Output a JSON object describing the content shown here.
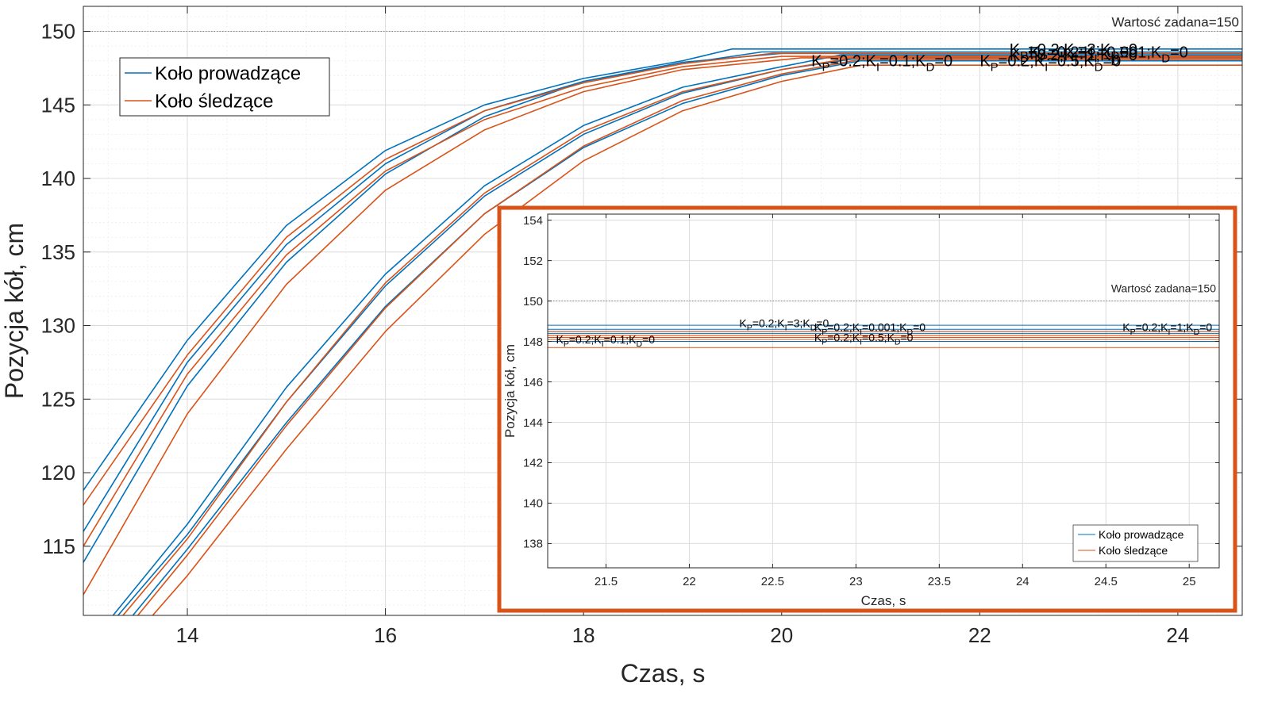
{
  "chart_data": [
    {
      "type": "line",
      "xlabel": "Czas, s",
      "ylabel": "Pozycja kół, cm",
      "xlim": [
        12.95,
        24.65
      ],
      "ylim": [
        110.3,
        151.7
      ],
      "xticks": [
        14,
        16,
        18,
        20,
        22,
        24
      ],
      "yticks": [
        115,
        120,
        125,
        130,
        135,
        140,
        145,
        150
      ],
      "grid": true,
      "minor_grid": true,
      "legend": {
        "position": "top-left",
        "entries": [
          {
            "label": "Koło prowadzące",
            "color": "#0072BD"
          },
          {
            "label": "Koło śledzące",
            "color": "#D95319"
          }
        ]
      },
      "reference_line": {
        "y": 150,
        "label": "Wartosć zadana=150"
      },
      "series": [
        {
          "group": "Koło prowadzące",
          "color": "#0072BD",
          "x": [
            12.95,
            14,
            15,
            16,
            17,
            18,
            19,
            19.5,
            24.65
          ],
          "y": [
            118.8,
            129.0,
            136.8,
            141.9,
            145.0,
            146.8,
            148.0,
            148.8,
            148.8
          ]
        },
        {
          "group": "Koło prowadzące",
          "color": "#0072BD",
          "x": [
            12.95,
            14,
            15,
            16,
            17,
            18,
            19,
            19.8,
            24.65
          ],
          "y": [
            116.0,
            127.5,
            135.5,
            141.0,
            144.6,
            146.6,
            147.8,
            148.6,
            148.6
          ]
        },
        {
          "group": "Koło prowadzące",
          "color": "#0072BD",
          "x": [
            12.95,
            14,
            15,
            16,
            17,
            18,
            19,
            20,
            24.65
          ],
          "y": [
            113.9,
            125.9,
            134.3,
            140.3,
            144.2,
            146.6,
            147.9,
            148.5,
            148.5
          ]
        },
        {
          "group": "Koło prowadzące",
          "color": "#0072BD",
          "x": [
            13.25,
            14,
            15,
            16,
            17,
            18,
            19,
            20,
            20.6,
            24.65
          ],
          "y": [
            110.3,
            116.5,
            125.8,
            133.5,
            139.5,
            143.6,
            146.2,
            147.6,
            148.4,
            148.4
          ]
        },
        {
          "group": "Koło prowadzące",
          "color": "#0072BD",
          "x": [
            13.3,
            14,
            15,
            16,
            17,
            18,
            19,
            20,
            20.8,
            24.65
          ],
          "y": [
            110.3,
            115.8,
            124.8,
            132.7,
            138.8,
            143.0,
            145.8,
            147.4,
            148.2,
            148.2
          ]
        },
        {
          "group": "Koło prowadzące",
          "color": "#0072BD",
          "x": [
            13.45,
            14,
            15,
            16,
            17,
            18,
            19,
            20,
            20.8,
            24.65
          ],
          "y": [
            110.3,
            114.8,
            123.4,
            131.3,
            137.6,
            142.1,
            145.1,
            147.0,
            148.0,
            148.0
          ]
        },
        {
          "group": "Koło śledzące",
          "color": "#D95319",
          "x": [
            12.95,
            14,
            15,
            16,
            17,
            18,
            19,
            19.9,
            24.65
          ],
          "y": [
            117.8,
            128.0,
            136.0,
            141.3,
            144.6,
            146.5,
            147.8,
            148.5,
            148.5
          ]
        },
        {
          "group": "Koło śledzące",
          "color": "#D95319",
          "x": [
            12.95,
            14,
            15,
            16,
            17,
            18,
            19,
            20,
            24.65
          ],
          "y": [
            115.0,
            126.7,
            134.8,
            140.5,
            144.0,
            146.2,
            147.6,
            148.3,
            148.3
          ]
        },
        {
          "group": "Koło śledzące",
          "color": "#D95319",
          "x": [
            12.95,
            14,
            15,
            16,
            17,
            18,
            19,
            20.2,
            24.65
          ],
          "y": [
            111.7,
            124.0,
            132.8,
            139.2,
            143.3,
            145.9,
            147.4,
            148.2,
            148.2
          ]
        },
        {
          "group": "Koło śledzące",
          "color": "#D95319",
          "x": [
            13.35,
            14,
            15,
            16,
            17,
            18,
            19,
            20,
            20.8,
            24.65
          ],
          "y": [
            110.3,
            115.5,
            124.8,
            132.9,
            139.0,
            143.2,
            145.9,
            147.4,
            148.3,
            148.3
          ]
        },
        {
          "group": "Koło śledzące",
          "color": "#D95319",
          "x": [
            13.5,
            14,
            15,
            16,
            17,
            18,
            19,
            20,
            20.8,
            24.65
          ],
          "y": [
            110.3,
            114.4,
            123.2,
            131.2,
            137.6,
            142.2,
            145.3,
            147.1,
            148.1,
            148.1
          ]
        },
        {
          "group": "Koło śledzące",
          "color": "#D95319",
          "x": [
            13.65,
            14,
            15,
            16,
            17,
            18,
            19,
            20,
            20.8,
            24.65
          ],
          "y": [
            110.3,
            113.0,
            121.6,
            129.6,
            136.2,
            141.2,
            144.6,
            146.6,
            147.7,
            147.7
          ]
        }
      ],
      "annotations": [
        {
          "text": "KP=0.2;KI=3;KD=0",
          "x": 22.3,
          "y": 148.8
        },
        {
          "text": "KP=0.2;KI=0.001;KD=0",
          "x": 22.5,
          "y": 148.6
        },
        {
          "text": "KP=0.2;KI=1;KD=0",
          "x": 22.3,
          "y": 148.4
        },
        {
          "text": "KP=0.2;KI=0.1;KD=0",
          "x": 20.3,
          "y": 148.0
        },
        {
          "text": "KP=0.2;KI=0.5;KD=0",
          "x": 22.0,
          "y": 148.0
        }
      ]
    },
    {
      "type": "line",
      "xlabel": "Czas, s",
      "ylabel": "Pozycja kół, cm",
      "xlim": [
        21.15,
        25.18
      ],
      "ylim": [
        136.8,
        154.3
      ],
      "xticks": [
        21.5,
        22,
        22.5,
        23,
        23.5,
        24,
        24.5,
        25
      ],
      "yticks": [
        138,
        140,
        142,
        144,
        146,
        148,
        150,
        152,
        154
      ],
      "grid": true,
      "legend": {
        "position": "bottom-right",
        "entries": [
          {
            "label": "Koło prowadzące",
            "color": "#0072BD"
          },
          {
            "label": "Koło śledzące",
            "color": "#D95319"
          }
        ]
      },
      "reference_line": {
        "y": 150,
        "label": "Wartosć zadana=150"
      },
      "series": [
        {
          "group": "Koło prowadzące",
          "color": "#0072BD",
          "y": 148.8
        },
        {
          "group": "Koło prowadzące",
          "color": "#0072BD",
          "y": 148.6
        },
        {
          "group": "Koło prowadzące",
          "color": "#0072BD",
          "y": 148.5
        },
        {
          "group": "Koło prowadzące",
          "color": "#0072BD",
          "y": 148.4
        },
        {
          "group": "Koło prowadzące",
          "color": "#0072BD",
          "y": 148.2
        },
        {
          "group": "Koło prowadzące",
          "color": "#0072BD",
          "y": 148.0
        },
        {
          "group": "Koło śledzące",
          "color": "#D95319",
          "y": 148.5
        },
        {
          "group": "Koło śledzące",
          "color": "#D95319",
          "y": 148.3
        },
        {
          "group": "Koło śledzące",
          "color": "#D95319",
          "y": 148.2
        },
        {
          "group": "Koło śledzące",
          "color": "#D95319",
          "y": 148.3
        },
        {
          "group": "Koło śledzące",
          "color": "#D95319",
          "y": 148.1
        },
        {
          "group": "Koło śledzące",
          "color": "#D95319",
          "y": 147.7
        }
      ],
      "annotations": [
        {
          "text": "KP=0.2;KI=3;KD=0",
          "x": 22.3,
          "y": 148.9
        },
        {
          "text": "KP=0.2;KI=0.001;KD=0",
          "x": 22.75,
          "y": 148.7
        },
        {
          "text": "KP=0.2;KI=1;KD=0",
          "x": 24.6,
          "y": 148.7
        },
        {
          "text": "KP=0.2;KI=0.1;KD=0",
          "x": 21.2,
          "y": 148.1
        },
        {
          "text": "KP=0.2;KI=0.5;KD=0",
          "x": 22.75,
          "y": 148.2
        }
      ]
    }
  ]
}
